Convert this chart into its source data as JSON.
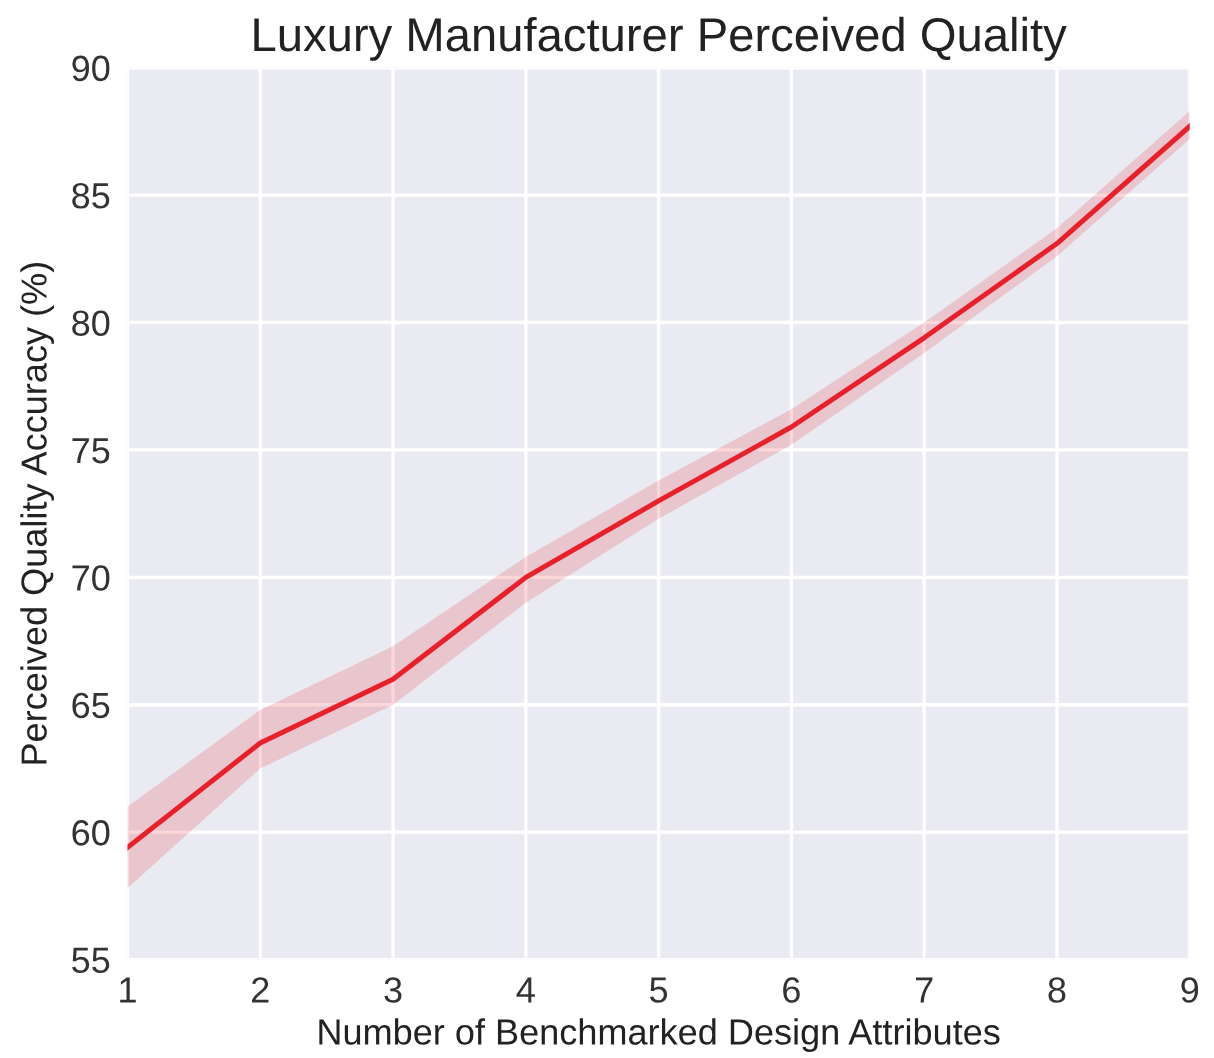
{
  "chart_data": {
    "type": "line",
    "title": "Luxury Manufacturer Perceived Quality",
    "xlabel": "Number of Benchmarked Design Attributes",
    "ylabel": "Perceived Quality Accuracy (%)",
    "x": [
      1,
      2,
      3,
      4,
      5,
      6,
      7,
      8,
      9
    ],
    "series": [
      {
        "color": "#e8202a",
        "values": [
          59.4,
          63.5,
          66.0,
          70.0,
          73.0,
          75.9,
          79.4,
          83.1,
          87.7
        ],
        "lower": [
          57.8,
          62.5,
          65.0,
          69.0,
          72.3,
          75.2,
          78.8,
          82.6,
          87.2
        ],
        "upper": [
          61.0,
          64.8,
          67.3,
          70.8,
          73.8,
          76.6,
          80.0,
          83.7,
          88.3
        ]
      }
    ],
    "xlim": [
      1,
      9
    ],
    "xticks": [
      1,
      2,
      3,
      4,
      5,
      6,
      7,
      8,
      9
    ],
    "ylim": [
      55,
      90
    ],
    "yticks": [
      55,
      60,
      65,
      70,
      75,
      80,
      85,
      90
    ],
    "grid": true,
    "line_style": "solid"
  }
}
